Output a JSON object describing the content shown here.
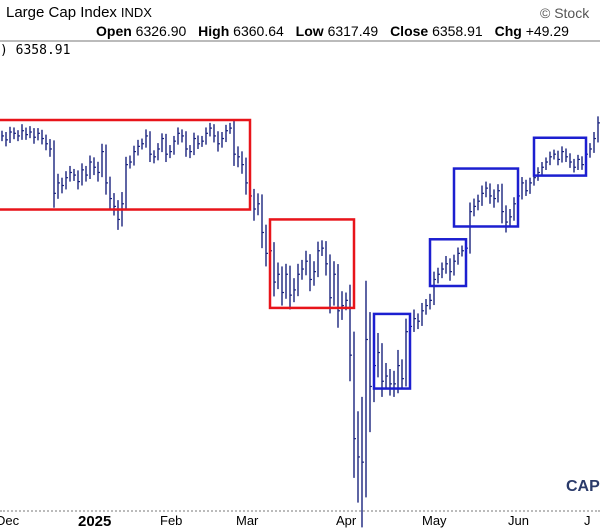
{
  "header": {
    "title": "Large Cap Index",
    "symbol": "INDX",
    "copyright": "© Stock",
    "open_label": "Open",
    "open": "6326.90",
    "high_label": "High",
    "high": "6360.64",
    "low_label": "Low",
    "low": "6317.49",
    "close_label": "Close",
    "close": "6358.91",
    "chg_label": "Chg",
    "chg": "+49.29"
  },
  "legend": ") 6358.91",
  "logo": "CAPI",
  "chart_data": {
    "type": "ohlc",
    "price_range": [
      4835,
      6360
    ],
    "bar_color": "#1a237e",
    "x_ticks": [
      {
        "label": "Dec",
        "bar": 1
      },
      {
        "label": "2025",
        "bar": 21.5
      },
      {
        "label": "Feb",
        "bar": 42
      },
      {
        "label": "Mar",
        "bar": 61
      },
      {
        "label": "Apr",
        "bar": 86
      },
      {
        "label": "May",
        "bar": 107.5
      },
      {
        "label": "Jun",
        "bar": 129
      },
      {
        "label": "J",
        "bar": 148
      }
    ],
    "close": [
      6230,
      6215,
      6245,
      6240,
      6230,
      6250,
      6235,
      6245,
      6225,
      6240,
      6220,
      6200,
      6180,
      6010,
      6050,
      6040,
      6070,
      6090,
      6080,
      6055,
      6100,
      6080,
      6130,
      6110,
      6090,
      6170,
      6050,
      5990,
      5960,
      5910,
      5970,
      6120,
      6130,
      6170,
      6190,
      6200,
      6230,
      6160,
      6150,
      6180,
      6220,
      6160,
      6170,
      6210,
      6240,
      6230,
      6180,
      6170,
      6220,
      6200,
      6210,
      6240,
      6260,
      6230,
      6200,
      6220,
      6250,
      6260,
      6160,
      6150,
      6120,
      6050,
      6000,
      5950,
      5970,
      5860,
      5780,
      5790,
      5670,
      5700,
      5630,
      5700,
      5620,
      5640,
      5700,
      5720,
      5750,
      5680,
      5710,
      5790,
      5800,
      5740,
      5610,
      5700,
      5560,
      5580,
      5600,
      5390,
      5070,
      5000,
      4980,
      5450,
      5270,
      5350,
      5400,
      5290,
      5310,
      5280,
      5280,
      5350,
      5300,
      5480,
      5500,
      5530,
      5520,
      5560,
      5580,
      5600,
      5680,
      5700,
      5720,
      5740,
      5710,
      5750,
      5780,
      5790,
      5800,
      5940,
      5960,
      5980,
      6010,
      6030,
      6000,
      5990,
      6020,
      5940,
      5900,
      5920,
      5970,
      6000,
      6050,
      6020,
      6050,
      6070,
      6090,
      6110,
      6130,
      6150,
      6160,
      6140,
      6170,
      6150,
      6130,
      6110,
      6140,
      6120,
      6160,
      6180,
      6220,
      6280,
      6330,
      6359
    ],
    "range": [
      40,
      50,
      40,
      45,
      40,
      50,
      40,
      45,
      50,
      40,
      45,
      50,
      60,
      110,
      70,
      60,
      50,
      50,
      45,
      60,
      50,
      50,
      50,
      60,
      70,
      60,
      90,
      80,
      70,
      80,
      90,
      60,
      50,
      45,
      50,
      40,
      50,
      60,
      50,
      45,
      40,
      60,
      50,
      40,
      45,
      50,
      60,
      50,
      45,
      40,
      40,
      45,
      40,
      50,
      60,
      50,
      45,
      40,
      90,
      80,
      70,
      90,
      110,
      90,
      80,
      120,
      100,
      90,
      110,
      90,
      100,
      80,
      110,
      90,
      80,
      70,
      80,
      90,
      80,
      70,
      60,
      90,
      120,
      100,
      130,
      110,
      60,
      200,
      300,
      350,
      500,
      450,
      350,
      200,
      150,
      120,
      100,
      90,
      100,
      120,
      80,
      100,
      90,
      70,
      60,
      60,
      50,
      50,
      60,
      50,
      50,
      60,
      70,
      50,
      45,
      40,
      50,
      70,
      60,
      50,
      60,
      50,
      60,
      70,
      50,
      90,
      80,
      60,
      50,
      50,
      45,
      40,
      40,
      35,
      40,
      40,
      35,
      40,
      35,
      45,
      40,
      40,
      45,
      40,
      35,
      40,
      40,
      45,
      50,
      50,
      45,
      45
    ],
    "annotations": [
      {
        "color": "#e8141a",
        "bars": [
          -1,
          62
        ],
        "prices": [
          5948,
          6291
        ]
      },
      {
        "color": "#e8141a",
        "bars": [
          67,
          88
        ],
        "prices": [
          5571,
          5910
        ]
      },
      {
        "color": "#1c1fd0",
        "bars": [
          93,
          102
        ],
        "prices": [
          5262,
          5548
        ]
      },
      {
        "color": "#1c1fd0",
        "bars": [
          107,
          116
        ],
        "prices": [
          5655,
          5834
        ]
      },
      {
        "color": "#1c1fd0",
        "bars": [
          113,
          129
        ],
        "prices": [
          5883,
          6105
        ]
      },
      {
        "color": "#1c1fd0",
        "bars": [
          133,
          146
        ],
        "prices": [
          6078,
          6223
        ]
      }
    ]
  }
}
